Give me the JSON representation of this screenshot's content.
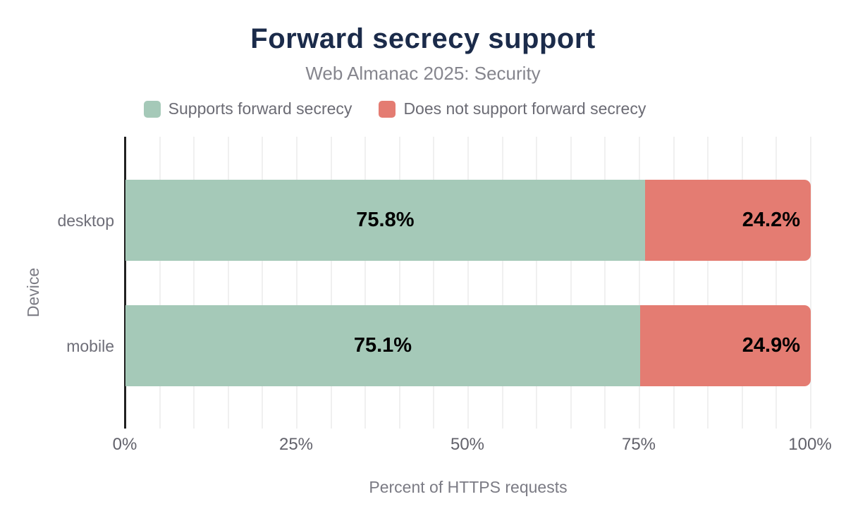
{
  "header": {
    "title": "Forward secrecy support",
    "subtitle": "Web Almanac 2025: Security"
  },
  "legend": {
    "items": [
      {
        "id": "supports",
        "label": "Supports forward secrecy",
        "color": "#a5c9b8"
      },
      {
        "id": "not-supports",
        "label": "Does not support forward secrecy",
        "color": "#e47c72"
      }
    ]
  },
  "chart_data": {
    "type": "bar",
    "orientation": "horizontal-stacked",
    "title": "Forward secrecy support",
    "subtitle": "Web Almanac 2025: Security",
    "categories": [
      "desktop",
      "mobile"
    ],
    "series": [
      {
        "name": "Supports forward secrecy",
        "color": "#a5c9b8",
        "values": [
          75.8,
          75.1
        ]
      },
      {
        "name": "Does not support forward secrecy",
        "color": "#e47c72",
        "values": [
          24.2,
          24.9
        ]
      }
    ],
    "data_labels": [
      [
        "75.8%",
        "24.2%"
      ],
      [
        "75.1%",
        "24.9%"
      ]
    ],
    "xlabel": "Percent of HTTPS requests",
    "ylabel": "Device",
    "xlim": [
      0,
      100
    ],
    "xticks": [
      "0%",
      "25%",
      "50%",
      "75%",
      "100%"
    ],
    "xtick_values": [
      0,
      25,
      50,
      75,
      100
    ],
    "grid": "vertical, every 5%",
    "legend_position": "top"
  },
  "colors": {
    "background": "#ffffff",
    "title": "#1b2b4a",
    "subtitle": "#85858d",
    "legend_text": "#6b6b74",
    "axis_text": "#62626b",
    "axis_title_text": "#7b7b84",
    "data_label": "#000000",
    "gridline": "#f0f0f0",
    "axis_line": "#212121"
  }
}
